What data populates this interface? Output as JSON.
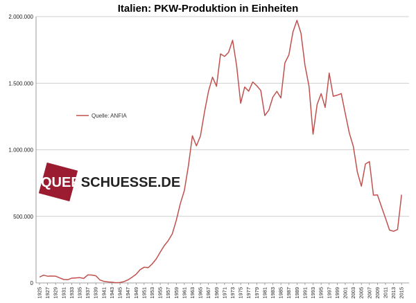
{
  "chart_data": {
    "type": "line",
    "title": "Italien: PKW-Produktion  in Einheiten",
    "xlabel": "",
    "ylabel": "",
    "ylim": [
      0,
      2000000
    ],
    "yticks": [
      0,
      500000,
      1000000,
      1500000,
      2000000
    ],
    "ytick_labels": [
      "0",
      "500.000",
      "1.000.000",
      "1.500.000",
      "2.000.000"
    ],
    "xlim": [
      1925,
      2016
    ],
    "xticks": [
      1925,
      1927,
      1929,
      1931,
      1933,
      1935,
      1937,
      1939,
      1941,
      1943,
      1945,
      1947,
      1949,
      1951,
      1953,
      1955,
      1957,
      1959,
      1961,
      1963,
      1965,
      1967,
      1969,
      1971,
      1973,
      1975,
      1977,
      1979,
      1981,
      1983,
      1985,
      1987,
      1989,
      1991,
      1993,
      1995,
      1997,
      1999,
      2001,
      2003,
      2005,
      2007,
      2009,
      2011,
      2013,
      2015
    ],
    "grid": "horizontal",
    "legend": "middle-left",
    "series": [
      {
        "name": "Quelle: ANFIA",
        "color": "#c0504d",
        "x": [
          1925,
          1926,
          1927,
          1928,
          1929,
          1930,
          1931,
          1932,
          1933,
          1934,
          1935,
          1936,
          1937,
          1938,
          1939,
          1940,
          1941,
          1942,
          1943,
          1944,
          1945,
          1946,
          1947,
          1948,
          1949,
          1950,
          1951,
          1952,
          1953,
          1954,
          1955,
          1956,
          1957,
          1958,
          1959,
          1960,
          1961,
          1962,
          1963,
          1964,
          1965,
          1966,
          1967,
          1968,
          1969,
          1970,
          1971,
          1972,
          1973,
          1974,
          1975,
          1976,
          1977,
          1978,
          1979,
          1980,
          1981,
          1982,
          1983,
          1984,
          1985,
          1986,
          1987,
          1988,
          1989,
          1990,
          1991,
          1992,
          1993,
          1994,
          1995,
          1996,
          1997,
          1998,
          1999,
          2000,
          2001,
          2002,
          2003,
          2004,
          2005,
          2006,
          2007,
          2008,
          2009,
          2010,
          2011,
          2012,
          2013,
          2014,
          2015
        ],
        "values": [
          44000,
          58000,
          51000,
          52000,
          51000,
          38000,
          26000,
          24000,
          36000,
          38000,
          40000,
          34000,
          60000,
          59000,
          54000,
          23000,
          12000,
          8000,
          5000,
          2000,
          3000,
          10000,
          23000,
          43000,
          65000,
          100000,
          118000,
          115000,
          143000,
          180000,
          231000,
          280000,
          318000,
          369000,
          471000,
          596000,
          694000,
          878000,
          1105000,
          1029000,
          1104000,
          1282000,
          1439000,
          1545000,
          1477000,
          1720000,
          1701000,
          1732000,
          1823000,
          1631000,
          1349000,
          1471000,
          1440000,
          1509000,
          1481000,
          1445000,
          1257000,
          1297000,
          1395000,
          1439000,
          1389000,
          1652000,
          1713000,
          1884000,
          1972000,
          1875000,
          1633000,
          1477000,
          1117000,
          1341000,
          1422000,
          1318000,
          1575000,
          1402000,
          1410000,
          1422000,
          1272000,
          1126000,
          1026000,
          833000,
          726000,
          893000,
          911000,
          659000,
          661000,
          573000,
          486000,
          397000,
          388000,
          401000,
          663000
        ]
      }
    ]
  },
  "watermark": {
    "text_pre": "QUER",
    "text_post": "SCHUESSE.DE",
    "square_color": "#9b1c31"
  }
}
